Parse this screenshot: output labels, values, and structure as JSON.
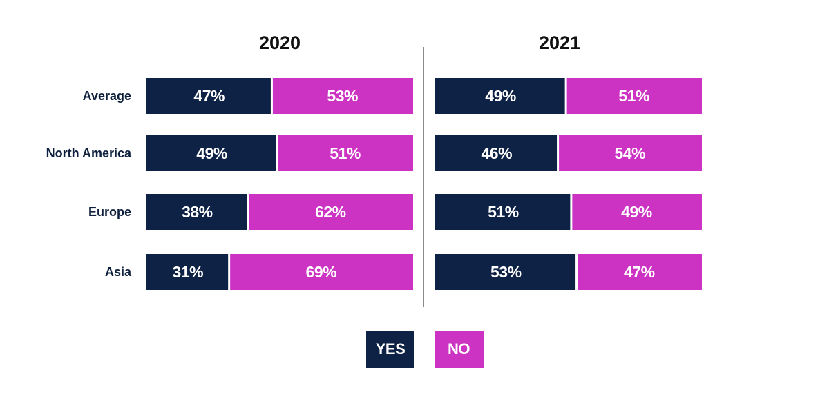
{
  "colors": {
    "yes": "#0d2244",
    "no": "#cc33c2",
    "divider": "#8a8a8a"
  },
  "legend": {
    "yes_label": "YES",
    "no_label": "NO"
  },
  "chart_data": {
    "type": "bar",
    "orientation": "horizontal",
    "stacked": "100%",
    "categories": [
      "Average",
      "North America",
      "Europe",
      "Asia"
    ],
    "panels": [
      {
        "title": "2020",
        "series": [
          {
            "name": "YES",
            "values": [
              47,
              49,
              38,
              31
            ]
          },
          {
            "name": "NO",
            "values": [
              53,
              51,
              62,
              69
            ]
          }
        ],
        "labels": {
          "YES": [
            "47%",
            "49%",
            "38%",
            "31%"
          ],
          "NO": [
            "53%",
            "51%",
            "62%",
            "69%"
          ]
        }
      },
      {
        "title": "2021",
        "series": [
          {
            "name": "YES",
            "values": [
              49,
              46,
              51,
              53
            ]
          },
          {
            "name": "NO",
            "values": [
              51,
              54,
              49,
              47
            ]
          }
        ],
        "labels": {
          "YES": [
            "49%",
            "46%",
            "51%",
            "53%"
          ],
          "NO": [
            "51%",
            "54%",
            "49%",
            "47%"
          ]
        }
      }
    ],
    "legend_position": "bottom-center"
  }
}
